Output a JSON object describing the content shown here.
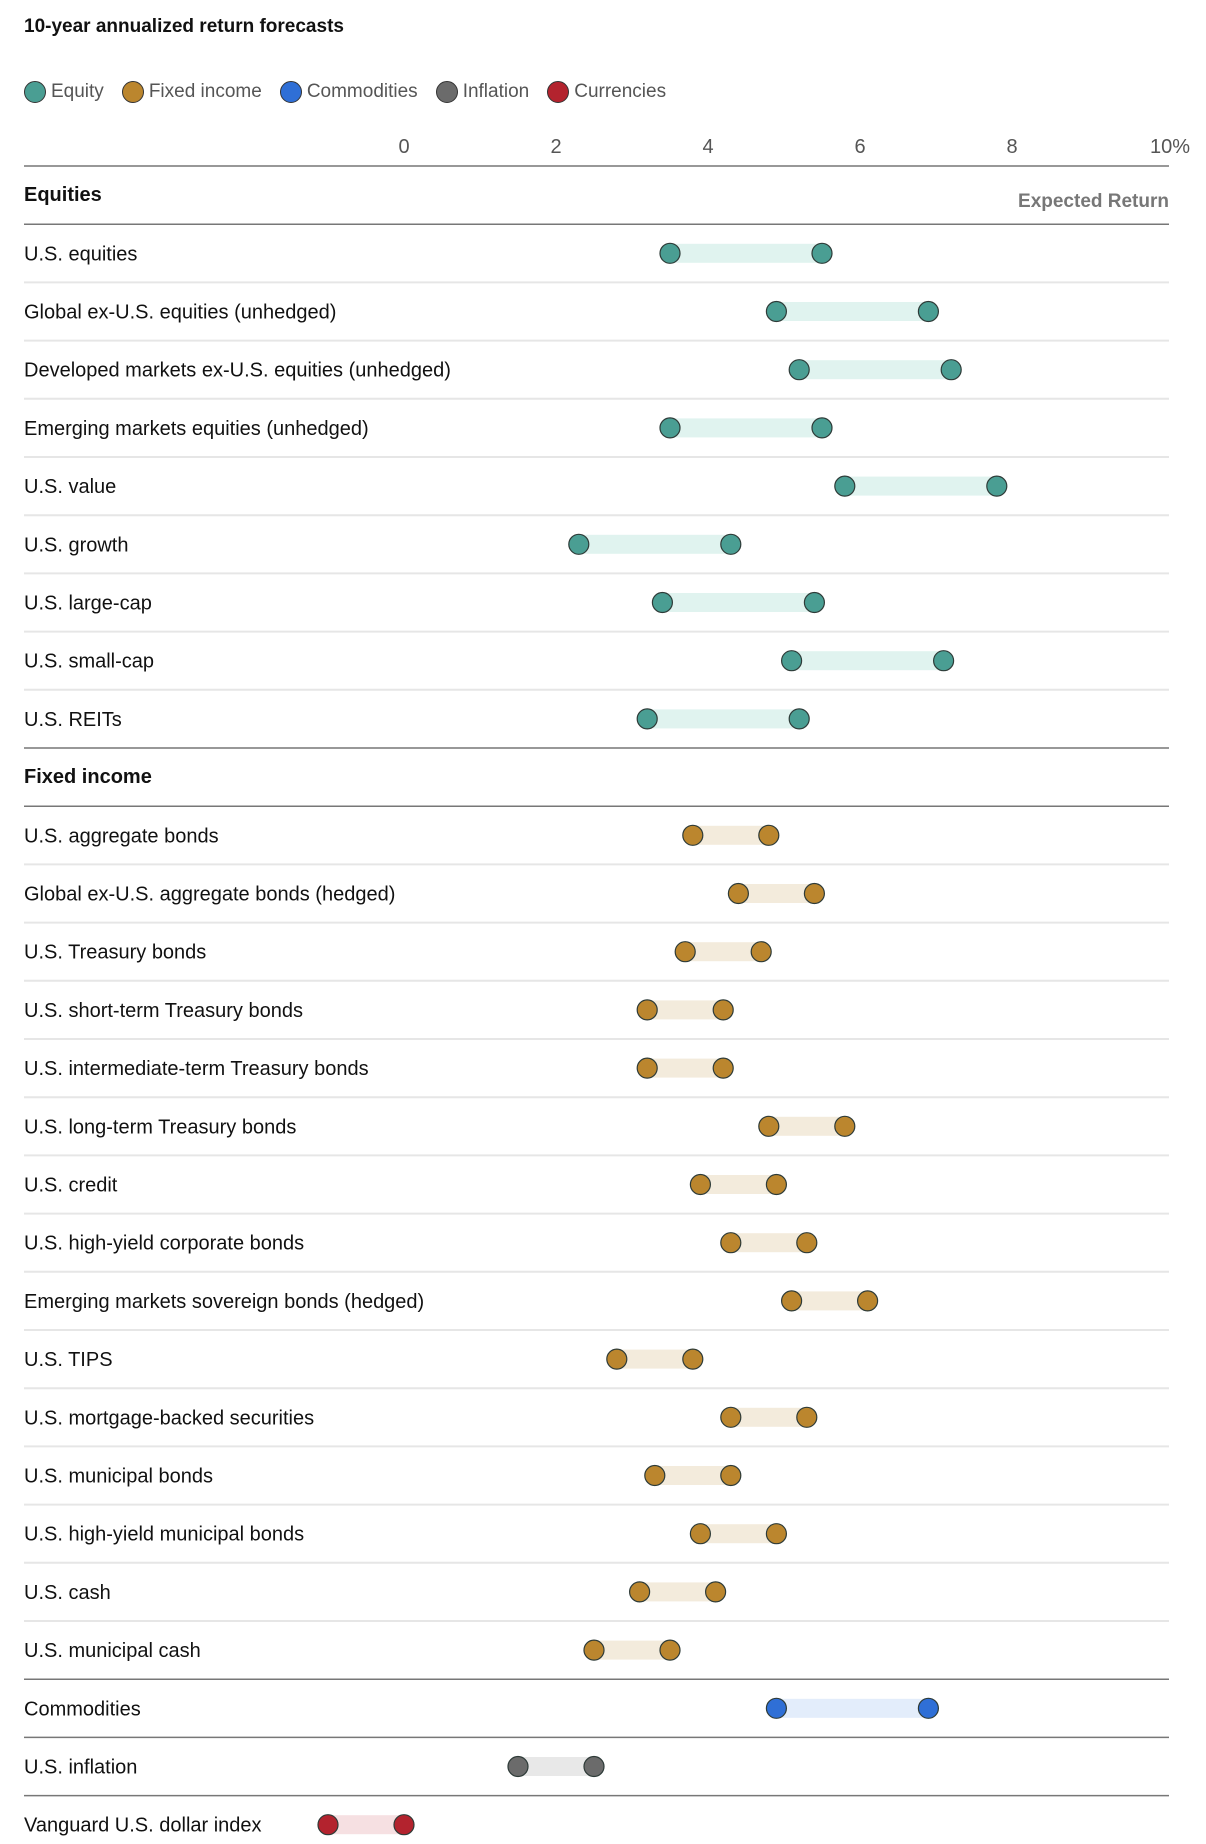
{
  "title": "10-year annualized return forecasts",
  "legend": [
    {
      "label": "Equity",
      "color": "#4a9e93"
    },
    {
      "label": "Fixed income",
      "color": "#bb862e"
    },
    {
      "label": "Commodities",
      "color": "#2f6fd6"
    },
    {
      "label": "Inflation",
      "color": "#6b6b6b"
    },
    {
      "label": "Currencies",
      "color": "#b3232e"
    }
  ],
  "column_header": "Expected Return",
  "chart_data": {
    "type": "range-dot",
    "title": "10-year annualized return forecasts",
    "xlabel": "Expected Return",
    "xlim": [
      0,
      10
    ],
    "x_ticks": [
      "0",
      "2",
      "4",
      "6",
      "8",
      "10%"
    ],
    "x_tick_values": [
      0,
      2,
      4,
      6,
      8,
      10
    ],
    "grid": false,
    "legend_position": "top-left",
    "groups": [
      {
        "name": "Equities",
        "show_header": true,
        "category": "Equity",
        "dot_color": "#4a9e93",
        "bar_color": "#e0f3ef",
        "rows": [
          {
            "label": "U.S. equities",
            "low": 3.5,
            "high": 5.5
          },
          {
            "label": "Global ex-U.S. equities (unhedged)",
            "low": 4.9,
            "high": 6.9
          },
          {
            "label": "Developed markets ex-U.S. equities (unhedged)",
            "low": 5.2,
            "high": 7.2
          },
          {
            "label": "Emerging markets equities (unhedged)",
            "low": 3.5,
            "high": 5.5
          },
          {
            "label": "U.S. value",
            "low": 5.8,
            "high": 7.8
          },
          {
            "label": "U.S. growth",
            "low": 2.3,
            "high": 4.3
          },
          {
            "label": "U.S. large-cap",
            "low": 3.4,
            "high": 5.4
          },
          {
            "label": "U.S. small-cap",
            "low": 5.1,
            "high": 7.1
          },
          {
            "label": "U.S. REITs",
            "low": 3.2,
            "high": 5.2
          }
        ]
      },
      {
        "name": "Fixed income",
        "show_header": true,
        "category": "Fixed income",
        "dot_color": "#bb862e",
        "bar_color": "#f3ebdc",
        "rows": [
          {
            "label": "U.S. aggregate bonds",
            "low": 3.8,
            "high": 4.8
          },
          {
            "label": "Global ex-U.S. aggregate bonds (hedged)",
            "low": 4.4,
            "high": 5.4
          },
          {
            "label": "U.S. Treasury bonds",
            "low": 3.7,
            "high": 4.7
          },
          {
            "label": "U.S. short-term Treasury bonds",
            "low": 3.2,
            "high": 4.2
          },
          {
            "label": "U.S. intermediate-term Treasury bonds",
            "low": 3.2,
            "high": 4.2
          },
          {
            "label": "U.S. long-term Treasury bonds",
            "low": 4.8,
            "high": 5.8
          },
          {
            "label": "U.S. credit",
            "low": 3.9,
            "high": 4.9
          },
          {
            "label": "U.S. high-yield corporate bonds",
            "low": 4.3,
            "high": 5.3
          },
          {
            "label": "Emerging markets sovereign bonds (hedged)",
            "low": 5.1,
            "high": 6.1
          },
          {
            "label": "U.S. TIPS",
            "low": 2.8,
            "high": 3.8
          },
          {
            "label": "U.S. mortgage-backed securities",
            "low": 4.3,
            "high": 5.3
          },
          {
            "label": "U.S. municipal bonds",
            "low": 3.3,
            "high": 4.3
          },
          {
            "label": "U.S. high-yield municipal bonds",
            "low": 3.9,
            "high": 4.9
          },
          {
            "label": "U.S. cash",
            "low": 3.1,
            "high": 4.1
          },
          {
            "label": "U.S. municipal cash",
            "low": 2.5,
            "high": 3.5
          }
        ]
      },
      {
        "name": "Commodities",
        "show_header": false,
        "category": "Commodities",
        "dot_color": "#2f6fd6",
        "bar_color": "#e3edfb",
        "rows": [
          {
            "label": "Commodities",
            "low": 4.9,
            "high": 6.9
          }
        ]
      },
      {
        "name": "Inflation",
        "show_header": false,
        "category": "Inflation",
        "dot_color": "#6b6b6b",
        "bar_color": "#e8e8e8",
        "rows": [
          {
            "label": "U.S. inflation",
            "low": 1.5,
            "high": 2.5
          }
        ]
      },
      {
        "name": "Currencies",
        "show_header": false,
        "category": "Currencies",
        "dot_color": "#b3232e",
        "bar_color": "#f6e0e2",
        "rows": [
          {
            "label": "Vanguard U.S. dollar index",
            "low": -1.0,
            "high": 0.0
          }
        ]
      }
    ]
  }
}
